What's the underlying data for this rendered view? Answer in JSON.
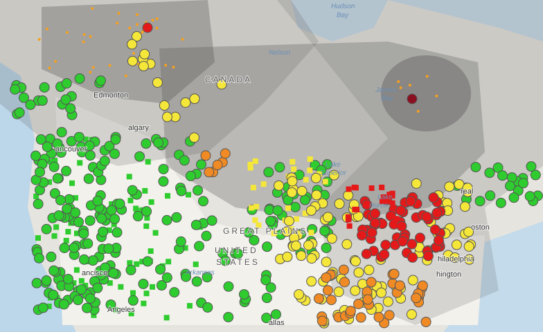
{
  "map": {
    "labels": [
      "Hudson",
      "Bay",
      "CANADA",
      "Nelson",
      "Edmonton",
      "algary",
      "ancouver",
      "James",
      "Bay",
      "Lake",
      "Superior",
      "Lake",
      "Huron",
      "GREAT PLAINS",
      "UNITED",
      "STATES",
      "Arkansas",
      "ancisco",
      "Angeles",
      "allas",
      "oston",
      "hiladelphia",
      "hington",
      "real"
    ]
  }
}
